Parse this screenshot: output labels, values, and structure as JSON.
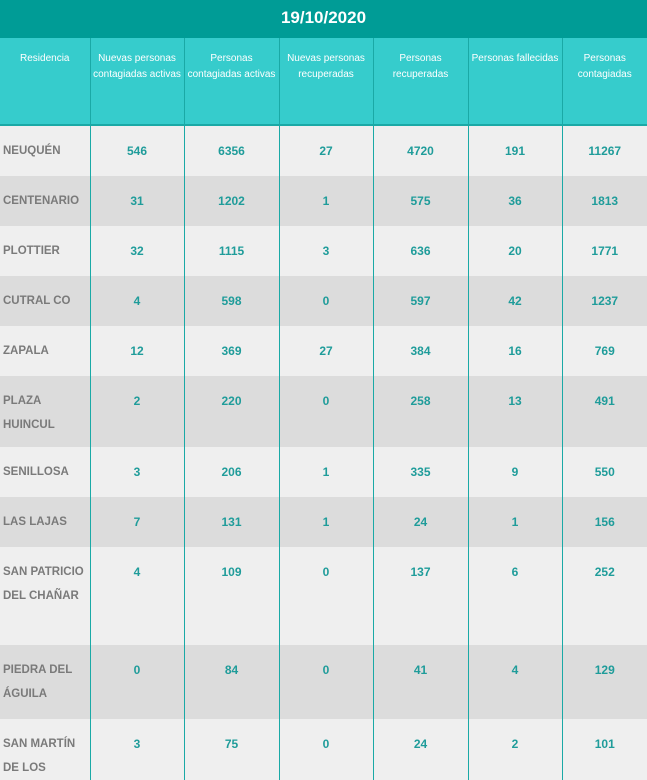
{
  "title": "19/10/2020",
  "columns": [
    "Residencia",
    "Nuevas personas contagiadas activas",
    "Personas contagiadas activas",
    "Nuevas personas recuperadas",
    "Personas recuperadas",
    "Personas fallecidas",
    "Personas contagiadas"
  ],
  "rows": [
    [
      "NEUQUÉN",
      "546",
      "6356",
      "27",
      "4720",
      "191",
      "11267"
    ],
    [
      "CENTENARIO",
      "31",
      "1202",
      "1",
      "575",
      "36",
      "1813"
    ],
    [
      "PLOTTIER",
      "32",
      "1115",
      "3",
      "636",
      "20",
      "1771"
    ],
    [
      "CUTRAL CO",
      "4",
      "598",
      "0",
      "597",
      "42",
      "1237"
    ],
    [
      "ZAPALA",
      "12",
      "369",
      "27",
      "384",
      "16",
      "769"
    ],
    [
      "PLAZA HUINCUL",
      "2",
      "220",
      "0",
      "258",
      "13",
      "491"
    ],
    [
      "SENILLOSA",
      "3",
      "206",
      "1",
      "335",
      "9",
      "550"
    ],
    [
      "LAS LAJAS",
      "7",
      "131",
      "1",
      "24",
      "1",
      "156"
    ],
    [
      "SAN PATRICIO DEL CHAÑAR",
      "4",
      "109",
      "0",
      "137",
      "6",
      "252"
    ],
    [
      "PIEDRA DEL ÁGUILA",
      "0",
      "84",
      "0",
      "41",
      "4",
      "129"
    ],
    [
      "SAN MARTÍN DE LOS",
      "3",
      "75",
      "0",
      "24",
      "2",
      "101"
    ]
  ]
}
